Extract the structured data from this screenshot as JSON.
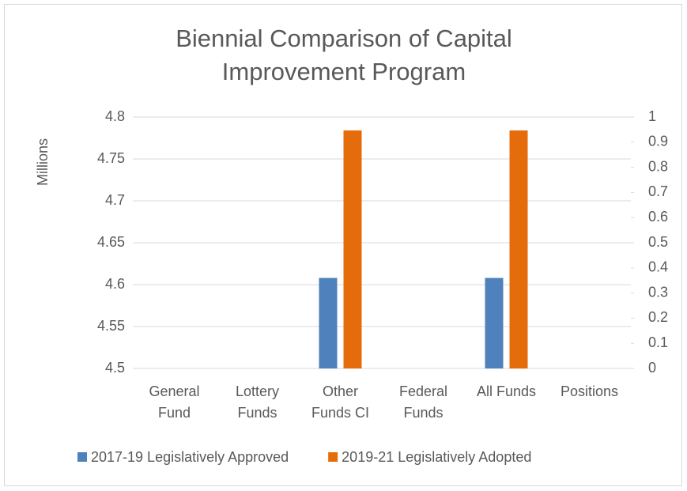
{
  "chart_data": {
    "type": "bar",
    "title": "Biennial Comparison of Capital Improvement Program",
    "y_label": "Millions",
    "categories": [
      "General Fund",
      "Lottery Funds",
      "Other Funds CI",
      "Federal Funds",
      "All Funds",
      "Positions"
    ],
    "series": [
      {
        "name": "2017-19 Legislatively Approved",
        "color": "#4f81bd",
        "values": [
          null,
          null,
          4.608,
          null,
          4.608,
          null
        ]
      },
      {
        "name": "2019-21 Legislatively Adopted",
        "color": "#e46c0a",
        "values": [
          null,
          null,
          4.784,
          null,
          4.784,
          null
        ]
      }
    ],
    "ylim": [
      4.5,
      4.8
    ],
    "yticks": [
      4.5,
      4.55,
      4.6,
      4.65,
      4.7,
      4.75,
      4.8
    ],
    "y2lim": [
      0,
      1
    ],
    "y2ticks": [
      0,
      0.1,
      0.2,
      0.3,
      0.4,
      0.5,
      0.6,
      0.7,
      0.8,
      0.9,
      1
    ],
    "grid": true,
    "legend": "bottom"
  }
}
